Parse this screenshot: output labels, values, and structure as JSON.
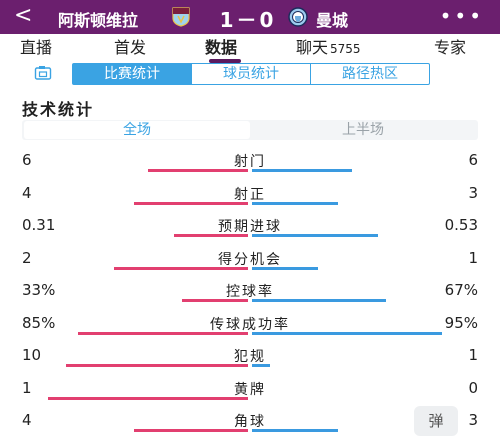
{
  "header": {
    "home_team": "阿斯顿维拉",
    "score": "1－0",
    "away_team": "曼城",
    "colors": {
      "bg": "#6b1f6e"
    }
  },
  "tabs": [
    {
      "label": "直播",
      "count": ""
    },
    {
      "label": "首发",
      "count": ""
    },
    {
      "label": "数据",
      "count": "",
      "active": true
    },
    {
      "label": "聊天",
      "count": "5755"
    },
    {
      "label": "专家",
      "count": ""
    }
  ],
  "subtabs": [
    "比赛统计",
    "球员统计",
    "路径热区"
  ],
  "section_title": "技术统计",
  "period": {
    "full": "全场",
    "first_half": "上半场"
  },
  "stats": [
    {
      "name": "射门",
      "home": "6",
      "away": "6",
      "home_frac": 0.5,
      "away_frac": 0.5
    },
    {
      "name": "射正",
      "home": "4",
      "away": "3",
      "home_frac": 0.57,
      "away_frac": 0.43
    },
    {
      "name": "预期进球",
      "home": "0.31",
      "away": "0.53",
      "home_frac": 0.37,
      "away_frac": 0.63
    },
    {
      "name": "得分机会",
      "home": "2",
      "away": "1",
      "home_frac": 0.67,
      "away_frac": 0.33
    },
    {
      "name": "控球率",
      "home": "33%",
      "away": "67%",
      "home_frac": 0.33,
      "away_frac": 0.67
    },
    {
      "name": "传球成功率",
      "home": "85%",
      "away": "95%",
      "home_frac": 0.85,
      "away_frac": 0.95
    },
    {
      "name": "犯规",
      "home": "10",
      "away": "1",
      "home_frac": 0.91,
      "away_frac": 0.09
    },
    {
      "name": "黄牌",
      "home": "1",
      "away": "0",
      "home_frac": 1.0,
      "away_frac": 0.0
    },
    {
      "name": "角球",
      "home": "4",
      "away": "3",
      "home_frac": 0.57,
      "away_frac": 0.43
    }
  ],
  "danmu_label": "弹",
  "colors": {
    "home_bar": "#e23f70",
    "away_bar": "#3a9ae0",
    "accent": "#3aa3e3"
  }
}
